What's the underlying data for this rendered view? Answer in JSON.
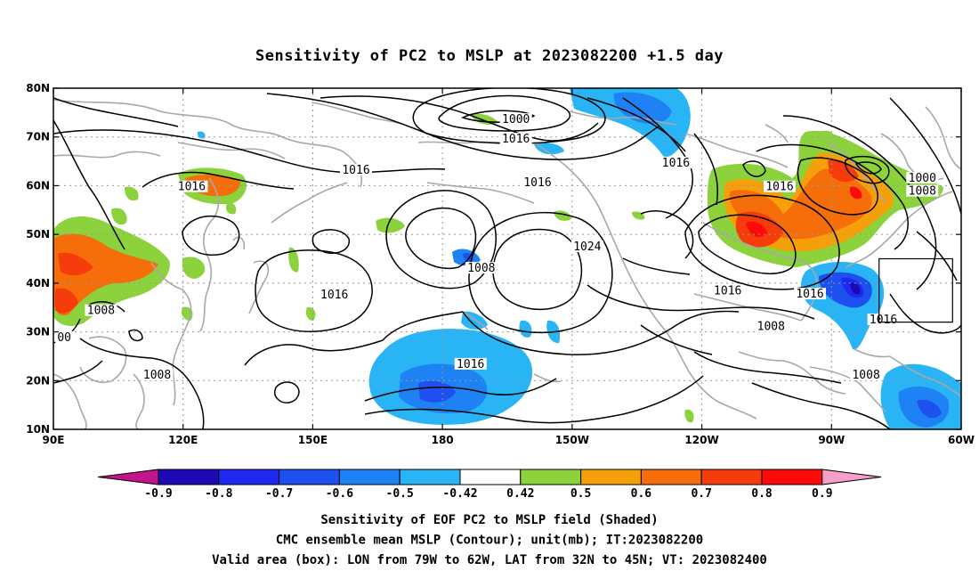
{
  "title": "Sensitivity of PC2 to MSLP at 2023082200 +1.5 day",
  "map": {
    "lon_range": [
      90,
      300
    ],
    "lat_range": [
      10,
      80
    ],
    "lon_ticks": [
      {
        "lon": 90,
        "label": "90E"
      },
      {
        "lon": 120,
        "label": "120E"
      },
      {
        "lon": 150,
        "label": "150E"
      },
      {
        "lon": 180,
        "label": "180"
      },
      {
        "lon": 210,
        "label": "150W"
      },
      {
        "lon": 240,
        "label": "120W"
      },
      {
        "lon": 270,
        "label": "90W"
      },
      {
        "lon": 300,
        "label": "60W"
      }
    ],
    "lat_ticks": [
      {
        "lat": 10,
        "label": "10N"
      },
      {
        "lat": 20,
        "label": "20N"
      },
      {
        "lat": 30,
        "label": "30N"
      },
      {
        "lat": 40,
        "label": "40N"
      },
      {
        "lat": 50,
        "label": "50N"
      },
      {
        "lat": 60,
        "label": "60N"
      },
      {
        "lat": 70,
        "label": "70N"
      },
      {
        "lat": 80,
        "label": "80N"
      }
    ],
    "grid": true,
    "valid_box": {
      "lon_min": 281,
      "lon_max": 298,
      "lat_min": 32,
      "lat_max": 45
    },
    "contour_labels": [
      {
        "text": "1000",
        "lon": 197,
        "lat": 73.2
      },
      {
        "text": "1016",
        "lon": 197,
        "lat": 69.2
      },
      {
        "text": "1016",
        "lon": 160,
        "lat": 62.8
      },
      {
        "text": "1016",
        "lon": 122,
        "lat": 59.4
      },
      {
        "text": "1016",
        "lon": 202,
        "lat": 60.3
      },
      {
        "text": "1016",
        "lon": 234,
        "lat": 64.3
      },
      {
        "text": "1016",
        "lon": 258,
        "lat": 59.4
      },
      {
        "text": "1000",
        "lon": 291,
        "lat": 61.2
      },
      {
        "text": "1008",
        "lon": 291,
        "lat": 58.5
      },
      {
        "text": "1024",
        "lon": 213.5,
        "lat": 47.1
      },
      {
        "text": "1008",
        "lon": 189,
        "lat": 42.7
      },
      {
        "text": "1016",
        "lon": 155,
        "lat": 37.2
      },
      {
        "text": "1016",
        "lon": 246,
        "lat": 38.1
      },
      {
        "text": "1016",
        "lon": 265,
        "lat": 37.4
      },
      {
        "text": "1016",
        "lon": 282,
        "lat": 32.1
      },
      {
        "text": "1008",
        "lon": 101,
        "lat": 34.0
      },
      {
        "text": "00",
        "lon": 92.5,
        "lat": 28.5
      },
      {
        "text": "1008",
        "lon": 256,
        "lat": 30.7
      },
      {
        "text": "1016",
        "lon": 186.5,
        "lat": 23.0
      },
      {
        "text": "1008",
        "lon": 114,
        "lat": 20.8
      },
      {
        "text": "1008",
        "lon": 278,
        "lat": 20.8
      }
    ]
  },
  "colorbar": {
    "colors": [
      "#c0158c",
      "#1e0ab4",
      "#1e28f0",
      "#1e50f0",
      "#1e82f5",
      "#28b4f5",
      "#ffffff",
      "#8cd23c",
      "#f5a00a",
      "#f56e0a",
      "#f53c0a",
      "#ff0a0a",
      "#f5a0c8"
    ],
    "labels": [
      "-0.9",
      "-0.8",
      "-0.7",
      "-0.6",
      "-0.5",
      "-0.42",
      "0.42",
      "0.5",
      "0.6",
      "0.7",
      "0.8",
      "0.9"
    ]
  },
  "captions": [
    "Sensitivity of EOF PC2 to MSLP field (Shaded)",
    "CMC ensemble mean MSLP (Contour); unit(mb); IT:2023082200",
    "Valid area (box): LON from 79W to 62W, LAT from 32N to 45N; VT: 2023082400"
  ],
  "colors": {
    "contour": "#000000",
    "coast": "#a8a8a8",
    "grid": "#999999",
    "frame": "#000000"
  }
}
